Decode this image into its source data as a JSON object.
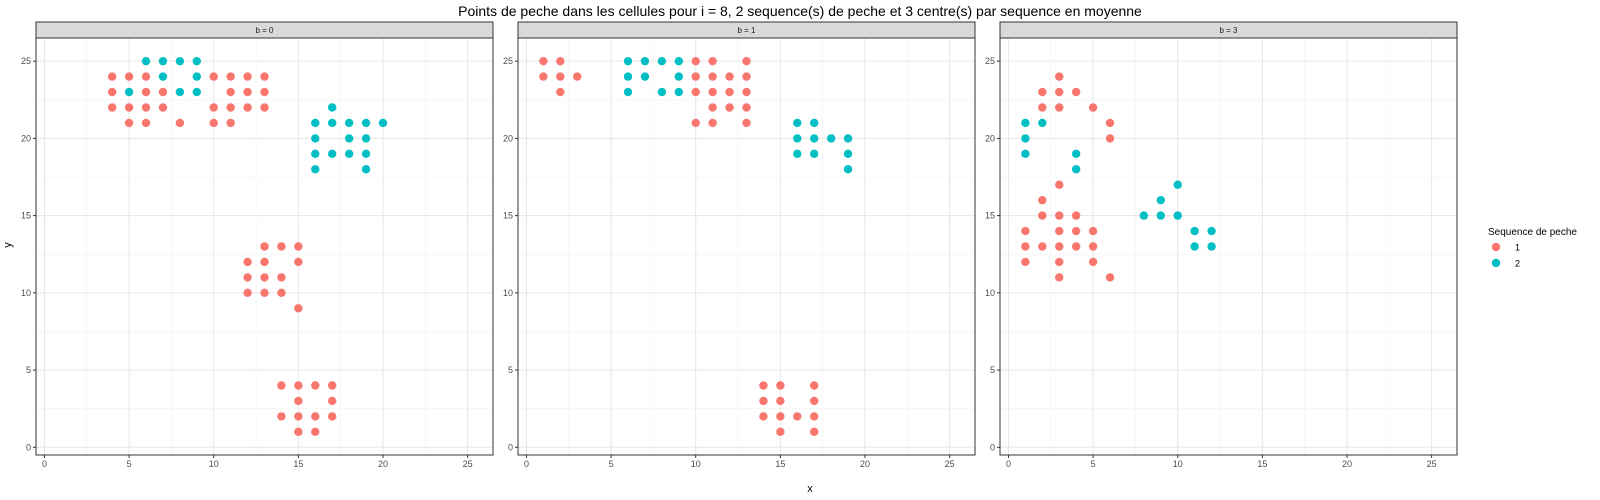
{
  "chart_data": {
    "type": "scatter",
    "title": "Points de peche dans les cellules pour i = 8, 2 sequence(s) de peche et 3 centre(s) par sequence en moyenne",
    "xlabel": "x",
    "ylabel": "y",
    "xlim": [
      -0.5,
      26.5
    ],
    "ylim": [
      -0.5,
      26.5
    ],
    "x_ticks": [
      0,
      5,
      10,
      15,
      20,
      25
    ],
    "y_ticks": [
      0,
      5,
      10,
      15,
      20,
      25
    ],
    "grid": true,
    "legend": {
      "title": "Sequence de peche",
      "position": "right",
      "entries": [
        {
          "label": "1",
          "color": "#F8766D"
        },
        {
          "label": "2",
          "color": "#00BFC4"
        }
      ]
    },
    "panels": [
      {
        "label": "b = 0",
        "series": [
          {
            "name": "1",
            "color": "#F8766D",
            "points": [
              [
                4,
                24
              ],
              [
                4,
                23
              ],
              [
                4,
                22
              ],
              [
                5,
                24
              ],
              [
                5,
                22
              ],
              [
                5,
                21
              ],
              [
                6,
                24
              ],
              [
                6,
                23
              ],
              [
                6,
                22
              ],
              [
                6,
                21
              ],
              [
                7,
                23
              ],
              [
                7,
                22
              ],
              [
                8,
                21
              ],
              [
                10,
                24
              ],
              [
                10,
                22
              ],
              [
                10,
                21
              ],
              [
                11,
                24
              ],
              [
                11,
                23
              ],
              [
                11,
                22
              ],
              [
                11,
                21
              ],
              [
                12,
                24
              ],
              [
                12,
                23
              ],
              [
                12,
                22
              ],
              [
                13,
                24
              ],
              [
                13,
                23
              ],
              [
                13,
                22
              ],
              [
                12,
                12
              ],
              [
                12,
                11
              ],
              [
                12,
                10
              ],
              [
                13,
                13
              ],
              [
                13,
                12
              ],
              [
                13,
                11
              ],
              [
                13,
                10
              ],
              [
                14,
                13
              ],
              [
                14,
                11
              ],
              [
                14,
                10
              ],
              [
                15,
                13
              ],
              [
                15,
                12
              ],
              [
                15,
                9
              ],
              [
                14,
                4
              ],
              [
                14,
                2
              ],
              [
                15,
                4
              ],
              [
                15,
                3
              ],
              [
                15,
                2
              ],
              [
                15,
                1
              ],
              [
                16,
                4
              ],
              [
                16,
                2
              ],
              [
                16,
                1
              ],
              [
                17,
                4
              ],
              [
                17,
                3
              ],
              [
                17,
                2
              ]
            ]
          },
          {
            "name": "2",
            "color": "#00BFC4",
            "points": [
              [
                5,
                23
              ],
              [
                6,
                25
              ],
              [
                7,
                25
              ],
              [
                7,
                24
              ],
              [
                8,
                25
              ],
              [
                8,
                23
              ],
              [
                9,
                25
              ],
              [
                9,
                24
              ],
              [
                9,
                23
              ],
              [
                16,
                21
              ],
              [
                16,
                20
              ],
              [
                16,
                19
              ],
              [
                16,
                18
              ],
              [
                17,
                22
              ],
              [
                17,
                21
              ],
              [
                17,
                19
              ],
              [
                18,
                21
              ],
              [
                18,
                20
              ],
              [
                18,
                19
              ],
              [
                19,
                21
              ],
              [
                19,
                20
              ],
              [
                19,
                19
              ],
              [
                19,
                18
              ],
              [
                20,
                21
              ]
            ]
          }
        ]
      },
      {
        "label": "b = 1",
        "series": [
          {
            "name": "1",
            "color": "#F8766D",
            "points": [
              [
                1,
                25
              ],
              [
                1,
                24
              ],
              [
                2,
                25
              ],
              [
                2,
                24
              ],
              [
                2,
                23
              ],
              [
                3,
                24
              ],
              [
                10,
                25
              ],
              [
                10,
                24
              ],
              [
                10,
                23
              ],
              [
                10,
                21
              ],
              [
                11,
                25
              ],
              [
                11,
                24
              ],
              [
                11,
                23
              ],
              [
                11,
                22
              ],
              [
                11,
                21
              ],
              [
                12,
                24
              ],
              [
                12,
                23
              ],
              [
                12,
                22
              ],
              [
                13,
                25
              ],
              [
                13,
                24
              ],
              [
                13,
                23
              ],
              [
                13,
                22
              ],
              [
                13,
                21
              ],
              [
                14,
                4
              ],
              [
                14,
                3
              ],
              [
                14,
                2
              ],
              [
                15,
                4
              ],
              [
                15,
                3
              ],
              [
                15,
                2
              ],
              [
                15,
                1
              ],
              [
                16,
                2
              ],
              [
                17,
                4
              ],
              [
                17,
                3
              ],
              [
                17,
                2
              ],
              [
                17,
                1
              ]
            ]
          },
          {
            "name": "2",
            "color": "#00BFC4",
            "points": [
              [
                6,
                25
              ],
              [
                6,
                24
              ],
              [
                6,
                23
              ],
              [
                7,
                25
              ],
              [
                7,
                24
              ],
              [
                8,
                25
              ],
              [
                8,
                23
              ],
              [
                9,
                25
              ],
              [
                9,
                24
              ],
              [
                9,
                23
              ],
              [
                16,
                21
              ],
              [
                16,
                20
              ],
              [
                16,
                19
              ],
              [
                17,
                21
              ],
              [
                17,
                20
              ],
              [
                17,
                19
              ],
              [
                18,
                20
              ],
              [
                19,
                20
              ],
              [
                19,
                19
              ],
              [
                19,
                18
              ]
            ]
          }
        ]
      },
      {
        "label": "b = 3",
        "series": [
          {
            "name": "1",
            "color": "#F8766D",
            "points": [
              [
                2,
                23
              ],
              [
                2,
                22
              ],
              [
                3,
                24
              ],
              [
                3,
                23
              ],
              [
                3,
                22
              ],
              [
                4,
                23
              ],
              [
                5,
                22
              ],
              [
                6,
                21
              ],
              [
                6,
                20
              ],
              [
                3,
                17
              ],
              [
                2,
                16
              ],
              [
                2,
                15
              ],
              [
                3,
                15
              ],
              [
                4,
                15
              ],
              [
                1,
                14
              ],
              [
                3,
                14
              ],
              [
                4,
                14
              ],
              [
                5,
                14
              ],
              [
                1,
                13
              ],
              [
                2,
                13
              ],
              [
                3,
                13
              ],
              [
                4,
                13
              ],
              [
                5,
                13
              ],
              [
                1,
                12
              ],
              [
                3,
                12
              ],
              [
                5,
                12
              ],
              [
                3,
                11
              ],
              [
                6,
                11
              ]
            ]
          },
          {
            "name": "2",
            "color": "#00BFC4",
            "points": [
              [
                1,
                21
              ],
              [
                1,
                20
              ],
              [
                1,
                19
              ],
              [
                2,
                21
              ],
              [
                4,
                19
              ],
              [
                4,
                18
              ],
              [
                8,
                15
              ],
              [
                9,
                16
              ],
              [
                9,
                15
              ],
              [
                10,
                17
              ],
              [
                10,
                15
              ],
              [
                11,
                14
              ],
              [
                11,
                13
              ],
              [
                12,
                14
              ],
              [
                12,
                13
              ]
            ]
          }
        ]
      }
    ]
  }
}
